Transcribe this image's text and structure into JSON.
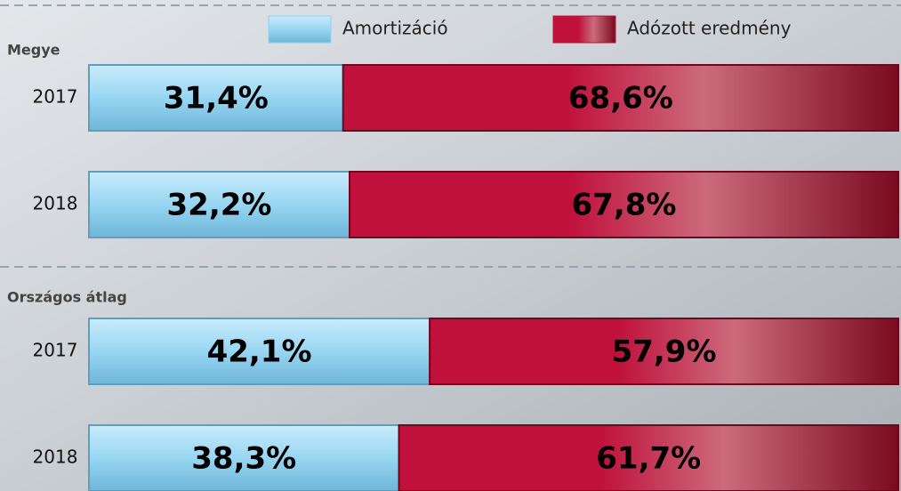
{
  "chart_data": {
    "type": "bar",
    "orientation": "horizontal",
    "stacked": true,
    "groups": [
      {
        "label": "Megye",
        "categories": [
          "2017",
          "2018"
        ]
      },
      {
        "label": "Országos átlag",
        "categories": [
          "2017",
          "2018"
        ]
      }
    ],
    "series": [
      {
        "name": "Amortizáció",
        "color": "#8fd2f0",
        "values": [
          31.4,
          32.2,
          42.1,
          38.3
        ],
        "value_labels": [
          "31,4%",
          "32,2%",
          "42,1%",
          "38,3%"
        ]
      },
      {
        "name": "Adózott eredmény",
        "color": "#b8143c",
        "values": [
          68.6,
          67.8,
          57.9,
          61.7
        ],
        "value_labels": [
          "68,6%",
          "67,8%",
          "57,9%",
          "61,7%"
        ]
      }
    ],
    "xlim": [
      0,
      100
    ]
  }
}
